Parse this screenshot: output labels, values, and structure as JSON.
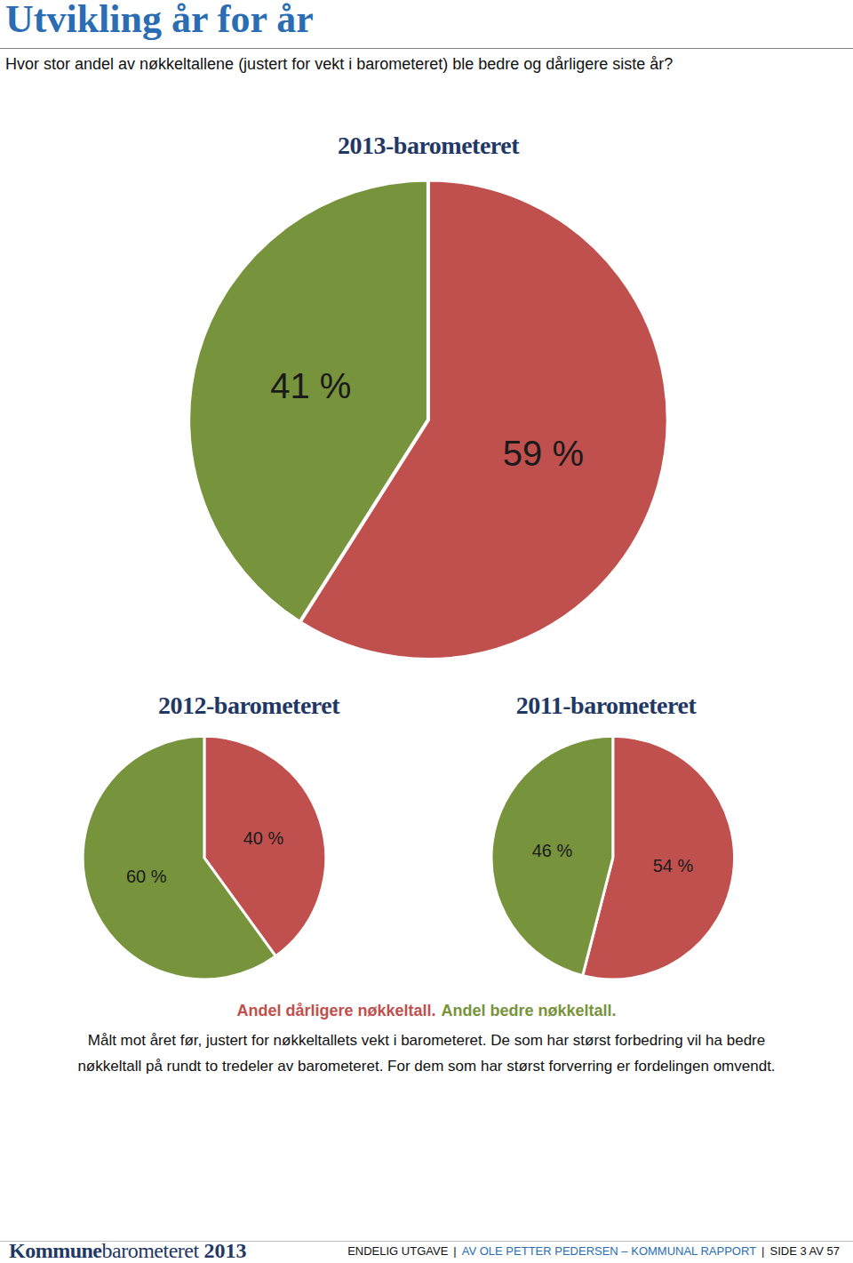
{
  "header": {
    "title": "Utvikling år for år",
    "subtitle": "Hvor stor andel av nøkkeltallene (justert for vekt i barometeret) ble bedre og dårligere siste år?"
  },
  "chart_data": [
    {
      "type": "pie",
      "title": "2013-barometeret",
      "categories": [
        "Andel dårligere nøkkeltall.",
        "Andel bedre nøkkeltall."
      ],
      "values": [
        59,
        41
      ],
      "value_labels": [
        "59 %",
        "41 %"
      ],
      "colors": [
        "#c0504d",
        "#77933c"
      ],
      "data_labels": true
    },
    {
      "type": "pie",
      "title": "2012-barometeret",
      "categories": [
        "Andel dårligere nøkkeltall.",
        "Andel bedre nøkkeltall."
      ],
      "values": [
        40,
        60
      ],
      "value_labels": [
        "40 %",
        "60 %"
      ],
      "colors": [
        "#c0504d",
        "#77933c"
      ],
      "data_labels": true
    },
    {
      "type": "pie",
      "title": "2011-barometeret",
      "categories": [
        "Andel dårligere nøkkeltall.",
        "Andel bedre nøkkeltall."
      ],
      "values": [
        54,
        46
      ],
      "value_labels": [
        "54 %",
        "46 %"
      ],
      "colors": [
        "#c0504d",
        "#77933c"
      ],
      "data_labels": true
    }
  ],
  "caption": [
    "Målt mot året før, justert for nøkkeltallets vekt i barometeret. De som har størst forbedring vil ha bedre",
    "nøkkeltall på rundt to tredeler av barometeret. For dem som har størst forverring er fordelingen omvendt."
  ],
  "footer": {
    "brand": [
      "Kommune",
      "barometeret",
      "2013"
    ],
    "parts": [
      "ENDELIG UTGAVE",
      "|",
      "AV OLE PETTER PEDERSEN – KOMMUNAL RAPPORT",
      "|",
      "SIDE 3 AV 57"
    ]
  }
}
